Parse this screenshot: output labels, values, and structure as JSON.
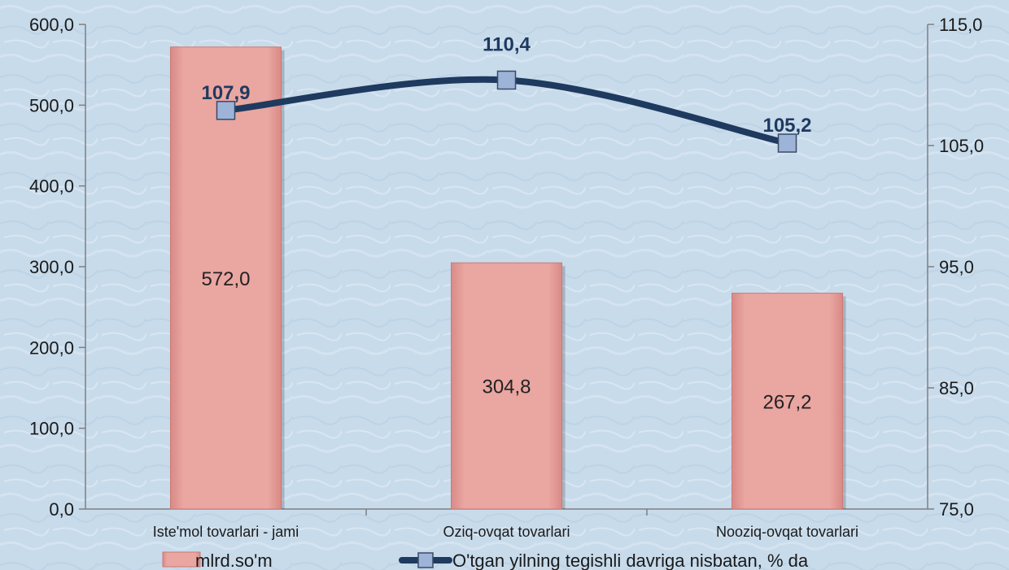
{
  "chart_data": {
    "type": "bar",
    "categories": [
      "Iste'mol tovarlari - jami",
      "Oziq-ovqat tovarlari",
      "Nooziq-ovqat tovarlari"
    ],
    "series": [
      {
        "name": "mlrd.so'm",
        "type": "bar",
        "axis": "left",
        "values": [
          572.0,
          304.8,
          267.2
        ],
        "labels": [
          "572,0",
          "304,8",
          "267,2"
        ],
        "color": "#e8a09c"
      },
      {
        "name": "O'tgan yilning tegishli davriga nisbatan, % da",
        "type": "line",
        "axis": "right",
        "values": [
          107.9,
          110.4,
          105.2
        ],
        "labels": [
          "107,9",
          "110,4",
          "105,2"
        ],
        "color": "#1f3a5f",
        "marker_color": "#9db3d8"
      }
    ],
    "y_left": {
      "ylim": [
        0,
        600
      ],
      "ticks": [
        0,
        100,
        200,
        300,
        400,
        500,
        600
      ],
      "tick_labels": [
        "0,0",
        "100,0",
        "200,0",
        "300,0",
        "400,0",
        "500,0",
        "600,0"
      ]
    },
    "y_right": {
      "ylim": [
        75,
        115
      ],
      "ticks": [
        75,
        85,
        95,
        105,
        115
      ],
      "tick_labels": [
        "75,0",
        "85,0",
        "95,0",
        "105,0",
        "115,0"
      ]
    },
    "legend_position": "bottom",
    "grid": false,
    "background_color": "#c9dcec"
  }
}
